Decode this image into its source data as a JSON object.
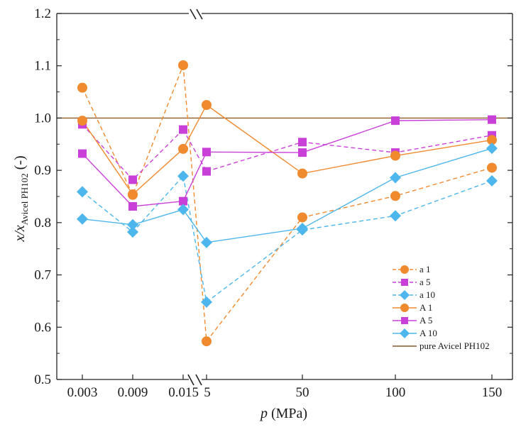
{
  "chart_data": {
    "type": "line",
    "title": "",
    "xlabel": "p (MPa)",
    "xlabel_italic": "p",
    "xlabel_rest": " (MPa)",
    "ylabel_var": "x/x",
    "ylabel_sub": "Avicel PH102",
    "ylabel_unit": " (-)",
    "ylim": [
      0.5,
      1.2
    ],
    "yticks": [
      "0.5",
      "0.6",
      "0.7",
      "0.8",
      "0.9",
      "1.0",
      "1.1",
      "1.2"
    ],
    "categories": [
      "0.003",
      "0.009",
      "0.015",
      "5",
      "50",
      "100",
      "150"
    ],
    "axis_break": "between 0.015 and 5",
    "legend_position": "bottom-right",
    "series": [
      {
        "name": "a 1",
        "color": "#F08A2E",
        "marker": "circle",
        "dash": true,
        "values": [
          1.058,
          0.853,
          1.101,
          0.573,
          0.81,
          0.851,
          0.905
        ]
      },
      {
        "name": "a 5",
        "color": "#C940D8",
        "marker": "square",
        "dash": true,
        "values": [
          0.988,
          0.882,
          0.978,
          0.898,
          0.954,
          0.934,
          0.967
        ]
      },
      {
        "name": "a 10",
        "color": "#4DB6EC",
        "marker": "diamond",
        "dash": true,
        "values": [
          0.859,
          0.782,
          0.889,
          0.648,
          0.786,
          0.813,
          0.88
        ]
      },
      {
        "name": "A 1",
        "color": "#F08A2E",
        "marker": "circle",
        "dash": false,
        "values": [
          0.995,
          0.854,
          0.941,
          1.025,
          0.894,
          0.928,
          0.958
        ]
      },
      {
        "name": "A 5",
        "color": "#C940D8",
        "marker": "square",
        "dash": false,
        "values": [
          0.932,
          0.831,
          0.841,
          0.935,
          0.934,
          0.995,
          0.997
        ]
      },
      {
        "name": "A 10",
        "color": "#4DB6EC",
        "marker": "diamond",
        "dash": false,
        "values": [
          0.807,
          0.796,
          0.825,
          0.762,
          0.789,
          0.886,
          0.942
        ]
      },
      {
        "name": "pure Avicel PH102",
        "color": "#8B5A2B",
        "marker": "none",
        "dash": false,
        "values": [
          1.0,
          1.0,
          1.0,
          1.0,
          1.0,
          1.0,
          1.0
        ]
      }
    ]
  }
}
